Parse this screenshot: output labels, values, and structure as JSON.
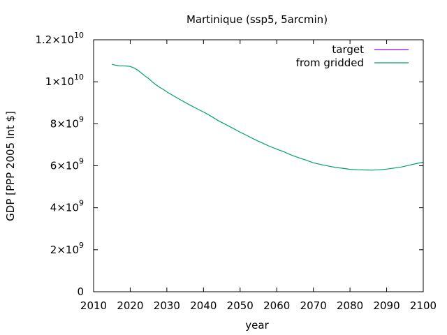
{
  "chart_data": {
    "type": "line",
    "title": "Martinique (ssp5, 5arcmin)",
    "xlabel": "year",
    "ylabel": "GDP [PPP 2005 Int $]",
    "xlim": [
      2010,
      2100
    ],
    "ylim": [
      0,
      12000000000
    ],
    "grid": false,
    "legend_position": "top-right",
    "x_ticks": [
      "2010",
      "2020",
      "2030",
      "2040",
      "2050",
      "2060",
      "2070",
      "2080",
      "2090",
      "2100"
    ],
    "y_ticks": [
      {
        "value": 0,
        "mantissa": "0",
        "exponent": ""
      },
      {
        "value": 2000000000,
        "mantissa": "2×10",
        "exponent": "9"
      },
      {
        "value": 4000000000,
        "mantissa": "4×10",
        "exponent": "9"
      },
      {
        "value": 6000000000,
        "mantissa": "6×10",
        "exponent": "9"
      },
      {
        "value": 8000000000,
        "mantissa": "8×10",
        "exponent": "9"
      },
      {
        "value": 10000000000,
        "mantissa": "1×10",
        "exponent": "10"
      },
      {
        "value": 12000000000,
        "mantissa": "1.2×10",
        "exponent": "10"
      }
    ],
    "series": [
      {
        "name": "target",
        "color": "#9400d3",
        "x": [],
        "values": []
      },
      {
        "name": "from gridded",
        "color": "#009e73",
        "x": [
          2015,
          2016,
          2017,
          2018,
          2019,
          2020,
          2021,
          2022,
          2023,
          2024,
          2025,
          2026,
          2027,
          2028,
          2029,
          2030,
          2032,
          2034,
          2036,
          2038,
          2040,
          2042,
          2044,
          2046,
          2048,
          2050,
          2052,
          2054,
          2056,
          2058,
          2060,
          2062,
          2064,
          2066,
          2068,
          2070,
          2072,
          2074,
          2076,
          2078,
          2080,
          2082,
          2084,
          2086,
          2088,
          2090,
          2092,
          2094,
          2096,
          2098,
          2100
        ],
        "values": [
          10830000000,
          10790000000,
          10760000000,
          10760000000,
          10750000000,
          10730000000,
          10660000000,
          10560000000,
          10420000000,
          10280000000,
          10160000000,
          10000000000,
          9860000000,
          9740000000,
          9640000000,
          9520000000,
          9310000000,
          9110000000,
          8920000000,
          8740000000,
          8560000000,
          8370000000,
          8150000000,
          7970000000,
          7790000000,
          7600000000,
          7430000000,
          7250000000,
          7090000000,
          6930000000,
          6790000000,
          6660000000,
          6510000000,
          6380000000,
          6270000000,
          6140000000,
          6060000000,
          5990000000,
          5920000000,
          5880000000,
          5830000000,
          5810000000,
          5800000000,
          5790000000,
          5810000000,
          5840000000,
          5890000000,
          5940000000,
          6020000000,
          6100000000,
          6170000000
        ]
      }
    ]
  }
}
